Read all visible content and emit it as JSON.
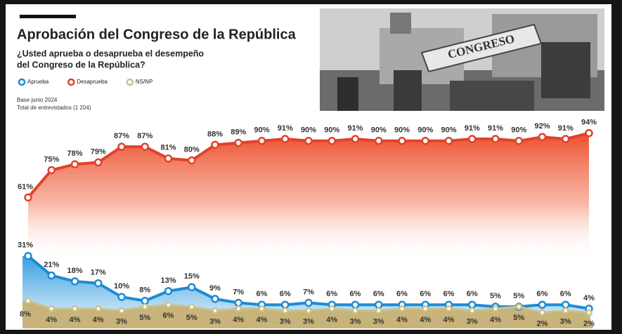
{
  "chart_data": {
    "type": "line",
    "title": "Aprobación del Congreso de la República",
    "subtitle": [
      "¿Usted aprueba o desaprueba el desempeño",
      "del Congreso de la República?"
    ],
    "notes": [
      "Base junio 2024",
      "Total de entrevistados (1 204)"
    ],
    "image_text": "CONGRESO",
    "ylim": [
      0,
      100
    ],
    "series": [
      {
        "name": "Aprueba",
        "color": "#1d8bd3",
        "fill": "#7fc2ec",
        "values": [
          31,
          21,
          18,
          17,
          10,
          8,
          13,
          15,
          9,
          7,
          6,
          6,
          7,
          6,
          6,
          6,
          6,
          6,
          6,
          6,
          5,
          5,
          6,
          6,
          4
        ],
        "value_labels": [
          "31%",
          "21%",
          "18%",
          "17%",
          "10%",
          "8%",
          "13%",
          "15%",
          "9%",
          "7%",
          "6%",
          "6%",
          "7%",
          "6%",
          "6%",
          "6%",
          "6%",
          "6%",
          "6%",
          "6%",
          "5%",
          "5%",
          "6%",
          "6%",
          "4%"
        ]
      },
      {
        "name": "Desaprueba",
        "color": "#e2412a",
        "fill": "#ec5a36",
        "values": [
          61,
          75,
          78,
          79,
          87,
          87,
          81,
          80,
          88,
          89,
          90,
          91,
          90,
          90,
          91,
          90,
          90,
          90,
          90,
          91,
          91,
          90,
          92,
          91,
          94
        ],
        "value_labels": [
          "61%",
          "75%",
          "78%",
          "79%",
          "87%",
          "87%",
          "81%",
          "80%",
          "88%",
          "89%",
          "90%",
          "91%",
          "90%",
          "90%",
          "91%",
          "90%",
          "90%",
          "90%",
          "90%",
          "91%",
          "91%",
          "90%",
          "92%",
          "91%",
          "94%"
        ]
      },
      {
        "name": "NS/NP",
        "color": "#c9c28a",
        "fill": "#c8b37a",
        "values": [
          8,
          4,
          4,
          4,
          3,
          5,
          6,
          5,
          3,
          4,
          4,
          3,
          3,
          4,
          3,
          3,
          4,
          4,
          4,
          3,
          4,
          5,
          2,
          3,
          2
        ],
        "value_labels": [
          "8%",
          "4%",
          "4%",
          "4%",
          "3%",
          "5%",
          "6%",
          "5%",
          "3%",
          "4%",
          "4%",
          "3%",
          "3%",
          "4%",
          "3%",
          "3%",
          "4%",
          "4%",
          "4%",
          "3%",
          "4%",
          "5%",
          "2%",
          "3%",
          "2%"
        ]
      }
    ]
  }
}
